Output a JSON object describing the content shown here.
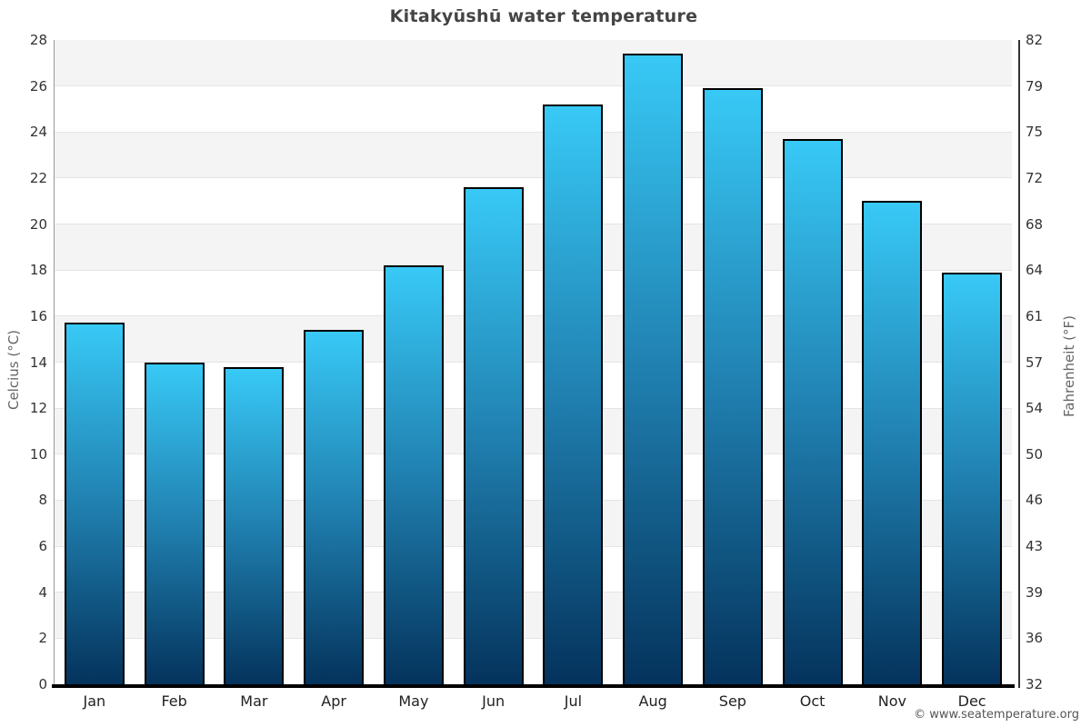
{
  "title": "Kitakyūshū water temperature",
  "footer": "© www.seatemperature.org",
  "axes": {
    "left_label": "Celcius (°C)",
    "right_label": "Fahrenheit (°F)"
  },
  "chart_data": {
    "type": "bar",
    "title": "Kitakyūshū water temperature",
    "categories": [
      "Jan",
      "Feb",
      "Mar",
      "Apr",
      "May",
      "Jun",
      "Jul",
      "Aug",
      "Sep",
      "Oct",
      "Nov",
      "Dec"
    ],
    "values": [
      15.7,
      14.0,
      13.8,
      15.4,
      18.2,
      21.6,
      25.2,
      27.4,
      25.9,
      23.7,
      21.0,
      17.9
    ],
    "xlabel": "",
    "ylabel_left": "Celcius (°C)",
    "ylabel_right": "Fahrenheit (°F)",
    "ylim_left": [
      0,
      28
    ],
    "yticks_left": [
      0,
      2,
      4,
      6,
      8,
      10,
      12,
      14,
      16,
      18,
      20,
      22,
      24,
      26,
      28
    ],
    "yticks_right_labels": [
      "32",
      "36",
      "39",
      "43",
      "46",
      "50",
      "54",
      "57",
      "61",
      "64",
      "68",
      "72",
      "75",
      "79",
      "82"
    ],
    "grid": "alternating-horizontal-bands",
    "legend": "none",
    "colors": {
      "bar_gradient_top": "#38C9F6",
      "bar_gradient_mid": "#2080B0",
      "bar_gradient_bottom": "#04335C",
      "bar_border": "#000000",
      "band_gray": "#f4f4f4",
      "band_white": "#ffffff",
      "gridline": "#e4e4e4",
      "axis_bottom": "#000000",
      "axis_left": "#999999",
      "axis_right": "#333333",
      "title_color": "#444444",
      "tick_color": "#333333",
      "footer_color": "#555555"
    }
  }
}
